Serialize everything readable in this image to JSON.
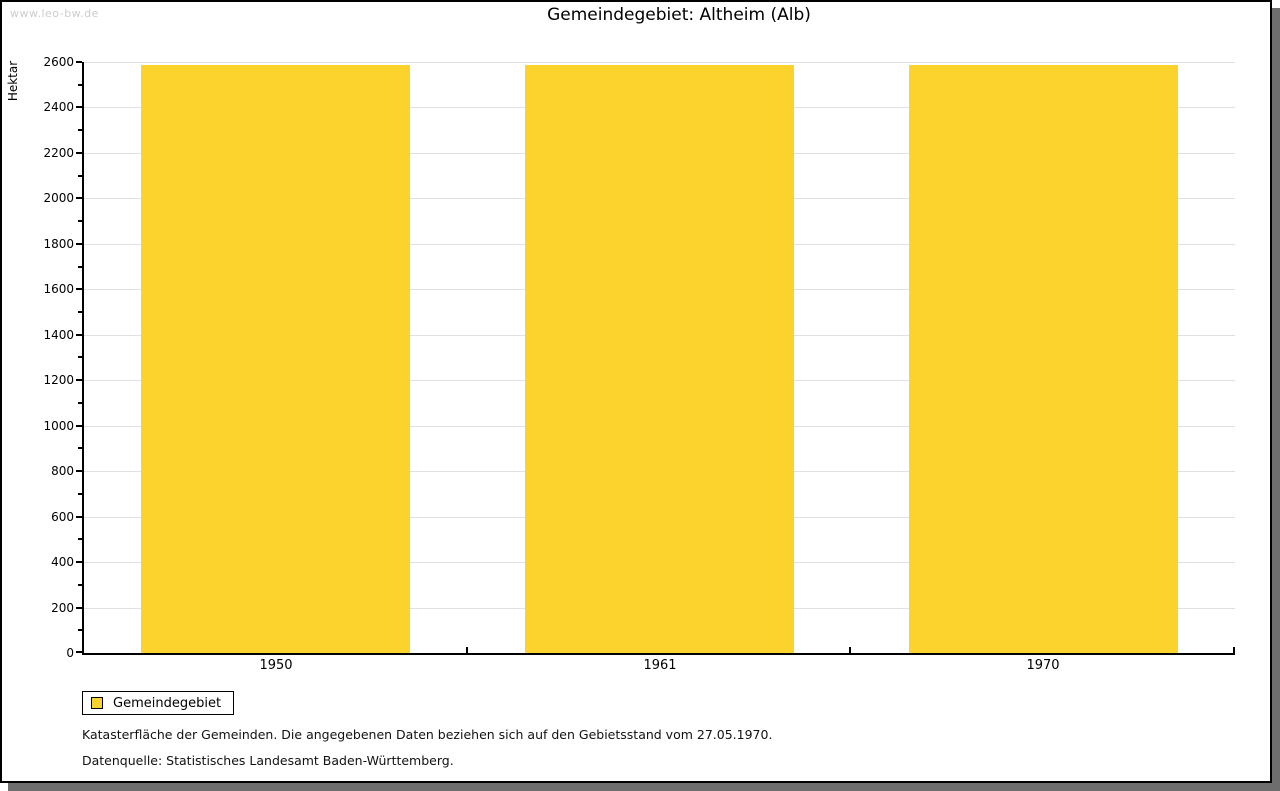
{
  "watermark": "www.leo-bw.de",
  "chart_data": {
    "type": "bar",
    "title": "Gemeindegebiet: Altheim (Alb)",
    "categories": [
      "1950",
      "1961",
      "1970"
    ],
    "series": [
      {
        "name": "Gemeindegebiet",
        "values": [
          2586,
          2586,
          2586
        ]
      }
    ],
    "xlabel": "",
    "ylabel": "Hektar",
    "ylim": [
      0,
      2600
    ],
    "y_major_step": 200,
    "y_minor_step": 100,
    "grid": true,
    "bar_color": "#fcd32d",
    "grid_color": "#e0e0e0",
    "legend_position": "bottom-left"
  },
  "legend": {
    "items": [
      {
        "label": "Gemeindegebiet",
        "color": "#fcd32d"
      }
    ]
  },
  "footnotes": [
    "Katasterfläche der Gemeinden. Die angegebenen Daten beziehen sich auf den Gebietsstand vom 27.05.1970.",
    "Datenquelle: Statistisches Landesamt Baden-Württemberg."
  ]
}
